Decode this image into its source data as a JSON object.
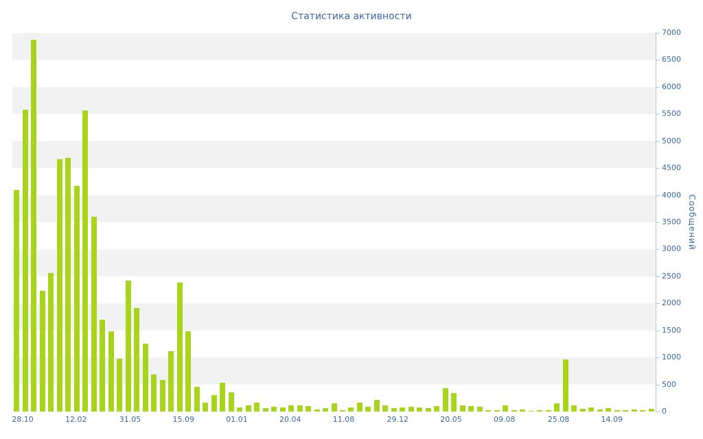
{
  "page": {
    "background": "#ffffff"
  },
  "chart_data": {
    "type": "bar",
    "title": "Статистика активности",
    "xlabel": "",
    "ylabel": "Сообщений",
    "ylim": [
      0,
      7000
    ],
    "y_tick_step": 500,
    "y_ticks": [
      0,
      500,
      1000,
      1500,
      2000,
      2500,
      3000,
      3500,
      4000,
      4500,
      5000,
      5500,
      6000,
      6500,
      7000
    ],
    "x_tick_labels": [
      "28.10",
      "12.02",
      "31.05",
      "15.09",
      "01.01",
      "20.04",
      "11.08",
      "29.12",
      "20.05",
      "09.08",
      "25.08",
      "14.09"
    ],
    "x_tick_positions_pct": [
      1.6,
      9.9,
      18.3,
      26.6,
      34.9,
      43.2,
      51.5,
      59.9,
      68.2,
      76.5,
      84.9,
      93.2
    ],
    "values": [
      4100,
      5580,
      6870,
      2230,
      2560,
      4670,
      4690,
      4170,
      5570,
      3600,
      1700,
      1480,
      980,
      2420,
      1920,
      1260,
      680,
      580,
      1120,
      2390,
      1480,
      460,
      170,
      300,
      530,
      350,
      80,
      120,
      170,
      60,
      90,
      75,
      110,
      120,
      100,
      40,
      60,
      150,
      30,
      80,
      170,
      90,
      210,
      120,
      60,
      80,
      90,
      70,
      60,
      100,
      430,
      340,
      120,
      100,
      90,
      30,
      20,
      120,
      20,
      40,
      10,
      30,
      20,
      150,
      970,
      110,
      50,
      80,
      40,
      60,
      30,
      20,
      40,
      20,
      50
    ],
    "legend": [],
    "grid": "horizontal-bands",
    "bar_color": "#a8d51c",
    "stripe_color": "#f2f2f2",
    "band_alt_color": "#ffffff",
    "title_color": "#3867a3",
    "axis_text_color": "#3867a3",
    "axis_line_color": "#aec6d8"
  }
}
